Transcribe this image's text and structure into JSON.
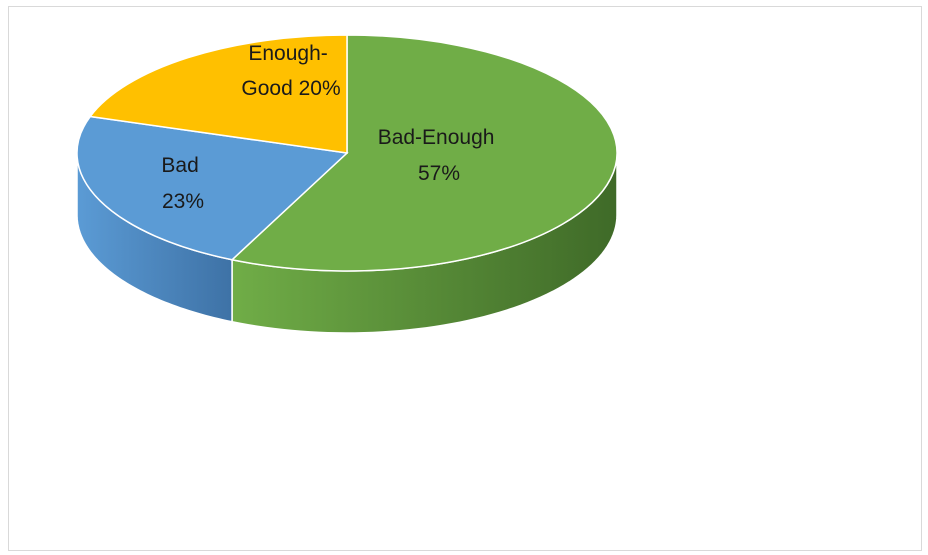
{
  "chart_data": {
    "type": "pie",
    "style": "3d",
    "title": "",
    "start_angle_deg": 0,
    "direction": "clockwise",
    "slices": [
      {
        "label": "Bad-Enough",
        "value": 57,
        "display": "57%",
        "color": "#70ad47",
        "side_color": "#3f6a28"
      },
      {
        "label": "Bad",
        "value": 23,
        "display": "23%",
        "color": "#5b9bd5",
        "side_color": "#3e72a6"
      },
      {
        "label": "Enough-Good",
        "value": 20,
        "display": "20%",
        "color": "#ffc000",
        "side_color": "#b38600"
      }
    ],
    "legend": "none",
    "data_labels": "inside"
  }
}
